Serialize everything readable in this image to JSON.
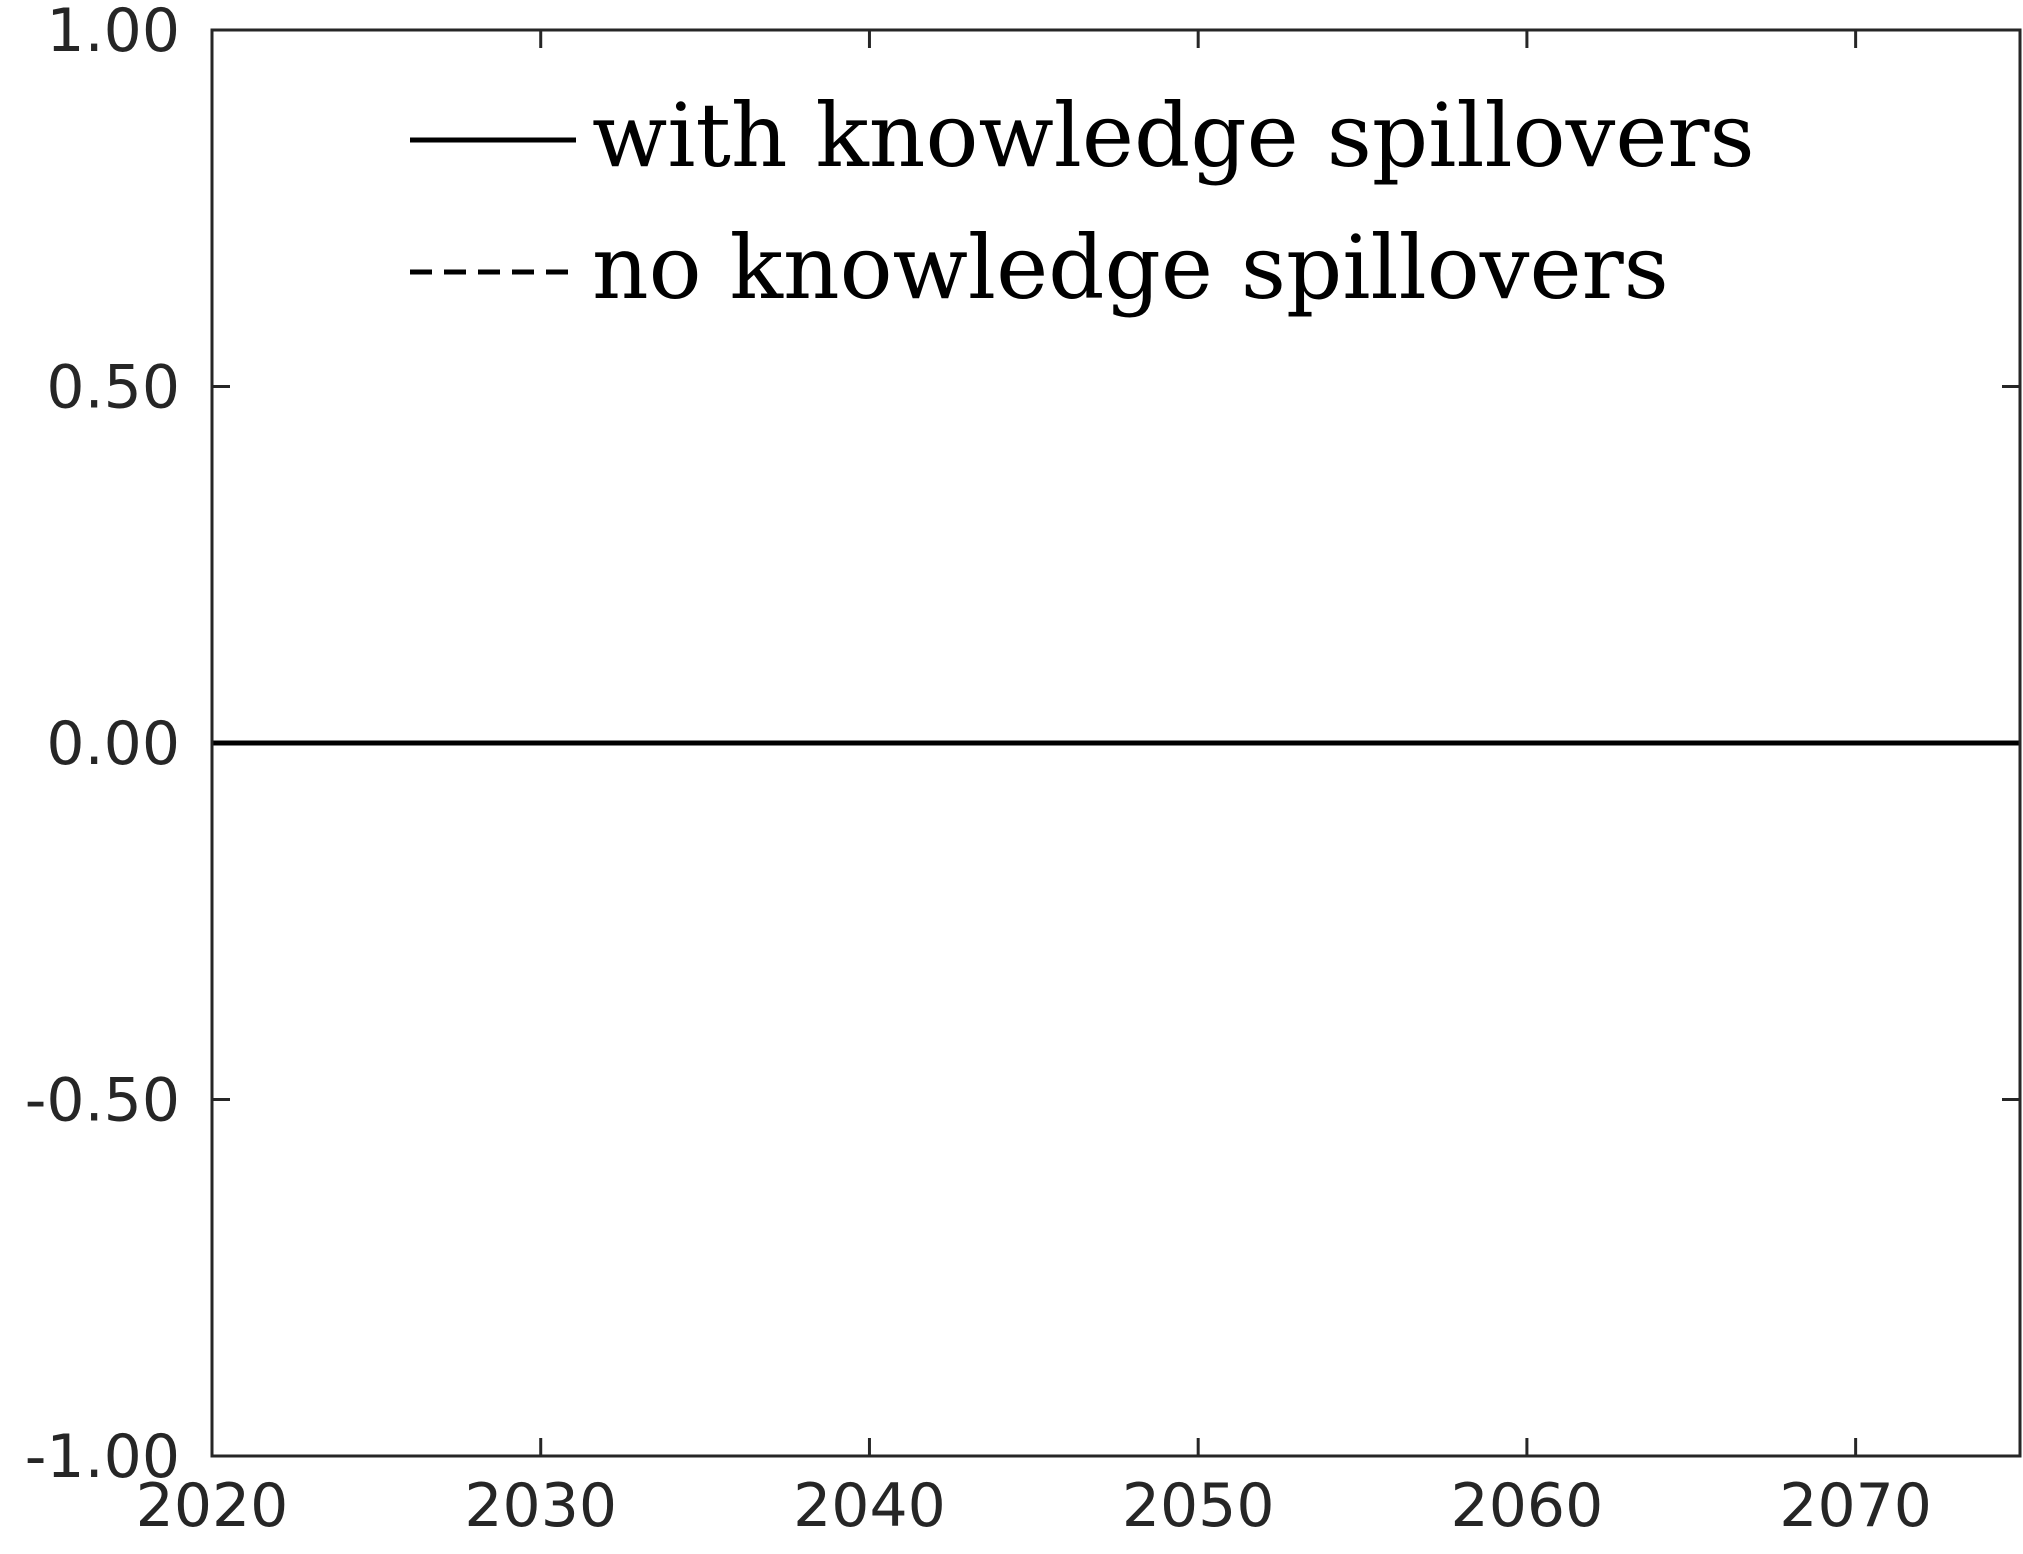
{
  "chart_data": {
    "type": "line",
    "title": "",
    "xlabel": "",
    "ylabel": "",
    "xlim": [
      2020,
      2075
    ],
    "ylim": [
      -1.0,
      1.0
    ],
    "x_ticks": [
      2020,
      2030,
      2040,
      2050,
      2060,
      2070
    ],
    "x_tick_labels": [
      "2020",
      "2030",
      "2040",
      "2050",
      "2060",
      "2070"
    ],
    "y_ticks": [
      -1.0,
      -0.5,
      0.0,
      0.5,
      1.0
    ],
    "y_tick_labels": [
      "-1.00",
      "-0.50",
      "0.00",
      "0.50",
      "1.00"
    ],
    "grid": false,
    "legend": {
      "placement": "top-center",
      "entries": [
        {
          "label": "with knowledge spillovers",
          "line_style": "solid"
        },
        {
          "label": "no knowledge spillovers",
          "line_style": "dashed"
        }
      ]
    },
    "series": [
      {
        "name": "with knowledge spillovers",
        "line_style": "solid",
        "color": "#000000",
        "x": [
          2020,
          2030,
          2040,
          2050,
          2060,
          2070,
          2075
        ],
        "y": [
          0,
          0,
          0,
          0,
          0,
          0,
          0
        ]
      },
      {
        "name": "no knowledge spillovers",
        "line_style": "dashed",
        "color": "#000000",
        "x": [
          2020,
          2030,
          2040,
          2050,
          2060,
          2070,
          2075
        ],
        "y": [
          0,
          0,
          0,
          0,
          0,
          0,
          0
        ]
      }
    ]
  }
}
